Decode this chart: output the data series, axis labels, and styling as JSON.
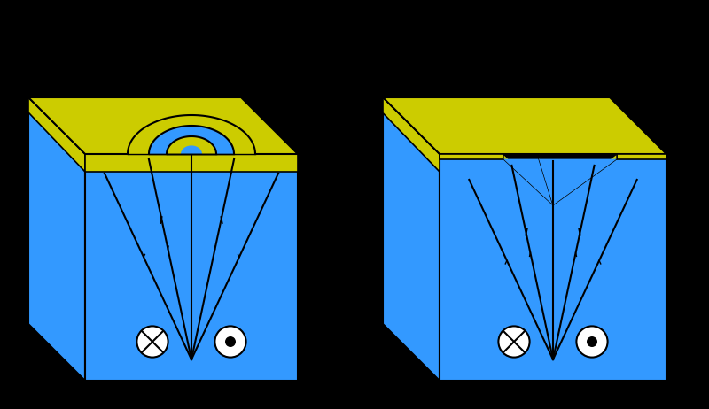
{
  "bg_color": "#000000",
  "blue": "#3399FF",
  "yellow": "#CCCC00",
  "black": "#000000",
  "white": "#FFFFFF",
  "figsize": [
    8.0,
    4.62
  ],
  "dpi": 100
}
